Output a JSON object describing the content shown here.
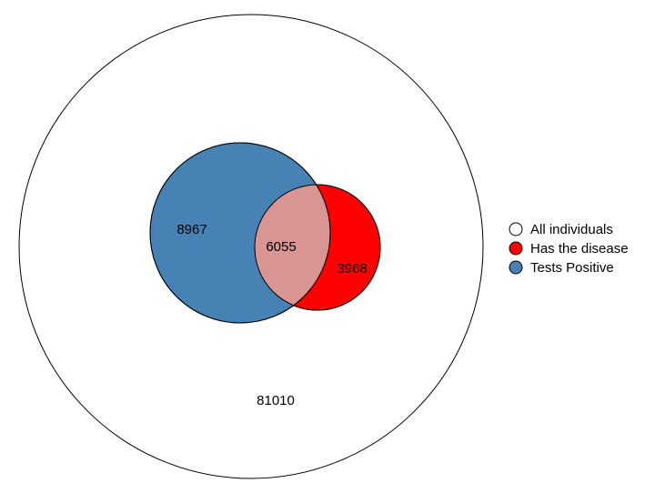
{
  "sets": [
    {
      "id": "all",
      "name": "All individuals",
      "color": "#ffffff"
    },
    {
      "id": "disease",
      "name": "Has the disease",
      "color": "#ff0000"
    },
    {
      "id": "positive",
      "name": "Tests Positive",
      "color": "#4682b4"
    }
  ],
  "overlap_color": "#d99594",
  "regions": {
    "positive_only": "8967",
    "both": "6055",
    "disease_only": "3968",
    "neither": "81010"
  }
}
